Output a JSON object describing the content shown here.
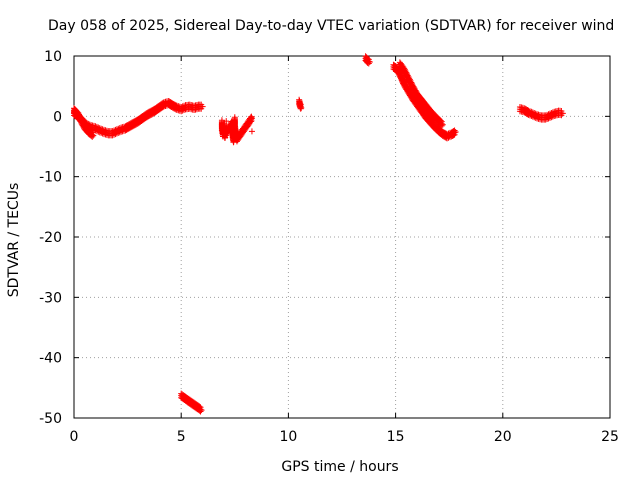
{
  "chart_data": {
    "type": "scatter",
    "title": "Day 058 of 2025, Sidereal Day-to-day VTEC variation (SDTVAR) for receiver wind",
    "xlabel": "GPS time / hours",
    "ylabel": "SDTVAR / TECUs",
    "xlim": [
      0,
      25
    ],
    "ylim": [
      -50,
      10
    ],
    "xticks": [
      "0",
      "5",
      "10",
      "15",
      "20",
      "25"
    ],
    "yticks": [
      "10",
      "0",
      "-10",
      "-20",
      "-30",
      "-40",
      "-50"
    ],
    "grid": true,
    "marker": "plus",
    "color": "#ff0000",
    "series": [
      {
        "name": "arc1",
        "x": [
          0.0,
          0.2,
          0.4,
          0.6,
          0.8,
          1.0,
          1.2,
          1.4,
          1.6,
          1.8,
          2.0,
          2.2,
          2.4,
          2.6,
          2.8,
          3.0,
          3.2,
          3.4,
          3.6,
          3.8,
          4.0,
          4.2,
          4.4,
          4.6,
          4.8,
          5.0,
          5.2,
          5.4,
          5.6,
          5.8,
          6.0
        ],
        "y": [
          0.5,
          0.0,
          -0.8,
          -1.5,
          -1.8,
          -2.0,
          -2.3,
          -2.6,
          -2.8,
          -2.8,
          -2.5,
          -2.2,
          -2.0,
          -1.6,
          -1.2,
          -0.8,
          -0.3,
          0.2,
          0.6,
          1.0,
          1.5,
          2.0,
          2.2,
          1.8,
          1.4,
          1.2,
          1.5,
          1.6,
          1.4,
          1.6,
          1.6
        ]
      },
      {
        "name": "arc2",
        "x": [
          0.0,
          0.1,
          0.2,
          0.3,
          0.4,
          0.5,
          0.6,
          0.7,
          0.8,
          0.9
        ],
        "y": [
          1.0,
          0.6,
          0.2,
          -0.5,
          -1.2,
          -1.8,
          -2.2,
          -2.6,
          -2.9,
          -3.2
        ]
      },
      {
        "name": "arc3",
        "x": [
          5.0,
          5.2,
          5.4,
          5.6,
          5.8,
          5.95
        ],
        "y": [
          -46.3,
          -46.8,
          -47.3,
          -47.8,
          -48.3,
          -48.7
        ]
      },
      {
        "name": "arc4",
        "x": [
          6.9,
          6.9,
          6.95,
          7.0,
          7.0,
          7.05,
          7.1,
          7.1,
          7.35,
          7.4,
          7.4,
          7.45,
          7.5,
          7.5,
          7.55,
          7.6,
          8.25,
          8.3,
          8.3
        ],
        "y": [
          -1.0,
          -2.0,
          -3.0,
          -1.5,
          -2.5,
          -3.5,
          -0.8,
          -2.8,
          -1.2,
          -2.2,
          -3.2,
          -4.2,
          -0.5,
          -1.8,
          -2.8,
          -3.8,
          -0.5,
          -0.3,
          -2.5
        ]
      },
      {
        "name": "arc5",
        "x": [
          10.5,
          10.55,
          10.6
        ],
        "y": [
          2.4,
          1.8,
          1.4
        ]
      },
      {
        "name": "arc6",
        "x": [
          13.6,
          13.7,
          13.8
        ],
        "y": [
          9.6,
          9.2,
          9.0
        ]
      },
      {
        "name": "arc7",
        "x": [
          14.9,
          15.0,
          15.1,
          15.2,
          15.3,
          15.4,
          15.6,
          15.8,
          16.0,
          16.2,
          16.4,
          16.6,
          16.8,
          17.0,
          17.2,
          17.4,
          17.6,
          17.8
        ],
        "y": [
          8.2,
          8.0,
          7.6,
          7.0,
          6.2,
          5.4,
          4.2,
          3.0,
          2.0,
          1.0,
          0.0,
          -0.8,
          -1.6,
          -2.3,
          -2.9,
          -3.3,
          -3.0,
          -2.6
        ]
      },
      {
        "name": "arc8",
        "x": [
          15.2,
          15.4,
          15.6,
          15.8,
          16.0,
          16.2,
          16.4,
          16.6,
          16.8,
          17.0,
          17.2
        ],
        "y": [
          8.6,
          7.6,
          6.2,
          4.8,
          3.5,
          2.6,
          1.7,
          0.8,
          0.0,
          -0.7,
          -1.4
        ]
      },
      {
        "name": "arc9",
        "x": [
          20.8,
          21.0,
          21.2,
          21.4,
          21.6,
          21.8,
          22.0,
          22.2,
          22.4,
          22.6,
          22.8
        ],
        "y": [
          1.2,
          1.0,
          0.6,
          0.3,
          0.0,
          -0.2,
          -0.2,
          0.1,
          0.4,
          0.6,
          0.5
        ]
      }
    ]
  }
}
